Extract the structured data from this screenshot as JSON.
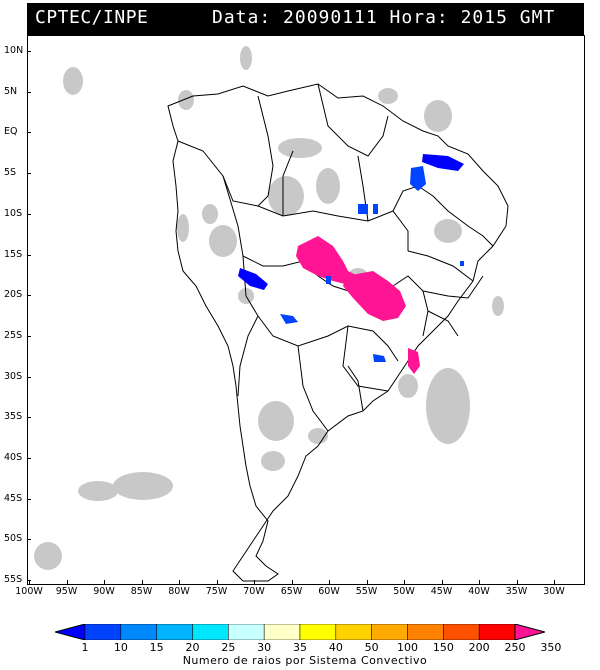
{
  "header": {
    "left_text": "CPTEC/INPE",
    "right_text": "Data: 20090111 Hora: 2015 GMT"
  },
  "map": {
    "latitude_labels": [
      "10N",
      "5N",
      "EQ",
      "5S",
      "10S",
      "15S",
      "20S",
      "25S",
      "30S",
      "35S",
      "40S",
      "45S",
      "50S",
      "55S"
    ],
    "longitude_labels": [
      "100W",
      "95W",
      "90W",
      "85W",
      "80W",
      "75W",
      "70W",
      "65W",
      "60W",
      "55W",
      "50W",
      "45W",
      "40W",
      "35W",
      "30W"
    ],
    "colors": {
      "land_border": "#000000",
      "cloud_gray": "#c8c8c8",
      "frame": "#000000"
    }
  },
  "legend": {
    "tick_labels": [
      "1",
      "10",
      "15",
      "20",
      "25",
      "30",
      "35",
      "40",
      "50",
      "100",
      "150",
      "200",
      "250",
      "350"
    ],
    "caption": "Numero de raios por Sistema Convectivo",
    "colors": [
      "#0000ff",
      "#0044ff",
      "#0088ff",
      "#00b4ff",
      "#00e6ff",
      "#c8ffff",
      "#ffffc8",
      "#ffff00",
      "#ffd200",
      "#ffaa00",
      "#ff8200",
      "#ff5000",
      "#ff0000",
      "#ff1493"
    ]
  }
}
